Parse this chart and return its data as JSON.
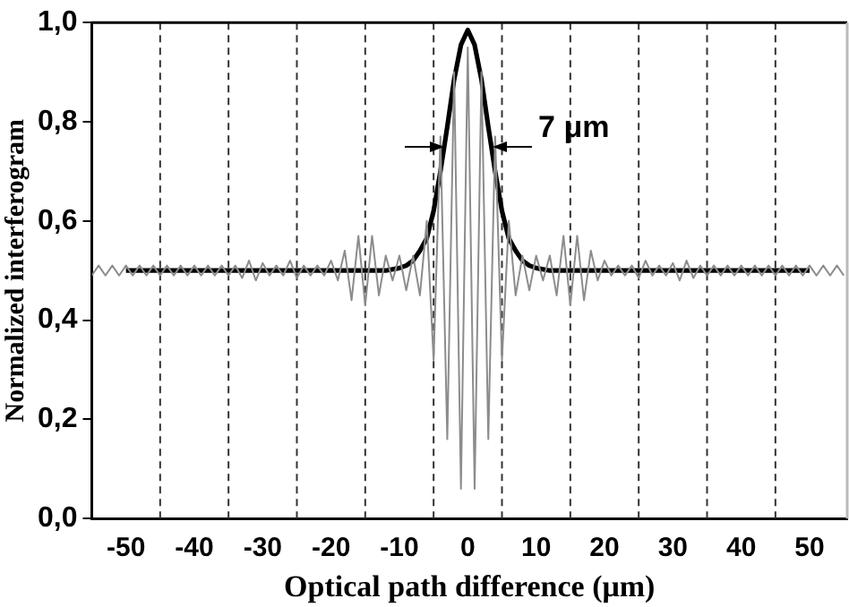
{
  "chart_data": {
    "type": "line",
    "xlabel": "Optical path difference (μm)",
    "ylabel": "Normalized interferogram",
    "xlim": [
      -55,
      55.5
    ],
    "ylim": [
      0,
      1
    ],
    "xticks": [
      -50,
      -40,
      -30,
      -20,
      -10,
      0,
      10,
      20,
      30,
      40,
      50
    ],
    "yticks": [
      {
        "value": 0,
        "label": "0,0"
      },
      {
        "value": 0.2,
        "label": "0,2"
      },
      {
        "value": 0.4,
        "label": "0,4"
      },
      {
        "value": 0.6,
        "label": "0,6"
      },
      {
        "value": 0.8,
        "label": "0,8"
      },
      {
        "value": 1,
        "label": "1,0"
      }
    ],
    "grid": false,
    "legend": false,
    "marker": "none",
    "ref_lines": [
      {
        "axis": "x",
        "value": -45,
        "line_style": "dashed"
      },
      {
        "axis": "x",
        "value": -35,
        "line_style": "dashed"
      },
      {
        "axis": "x",
        "value": -25,
        "line_style": "dashed"
      },
      {
        "axis": "x",
        "value": -15,
        "line_style": "dashed"
      },
      {
        "axis": "x",
        "value": -5,
        "line_style": "dashed"
      },
      {
        "axis": "x",
        "value": 5,
        "line_style": "dashed"
      },
      {
        "axis": "x",
        "value": 15,
        "line_style": "dashed"
      },
      {
        "axis": "x",
        "value": 25,
        "line_style": "dashed"
      },
      {
        "axis": "x",
        "value": 35,
        "line_style": "dashed"
      },
      {
        "axis": "x",
        "value": 45,
        "line_style": "dashed"
      }
    ],
    "annotations": [
      {
        "text": "7 μm",
        "x": 3.5,
        "y": 0.75
      }
    ],
    "series": [
      {
        "color": "#8c8c8c",
        "x": [
          -55,
          -54,
          -53,
          -52,
          -51,
          -50,
          -49,
          -48,
          -47,
          -46,
          -45,
          -44,
          -43,
          -42,
          -41,
          -40,
          -39,
          -38,
          -37,
          -36,
          -35,
          -34,
          -33,
          -32,
          -31,
          -30,
          -29,
          -28,
          -27,
          -26,
          -25,
          -24,
          -23,
          -22,
          -21,
          -20,
          -19,
          -18,
          -17,
          -16,
          -15,
          -14,
          -13,
          -12,
          -11,
          -10,
          -9,
          -8,
          -7,
          -6,
          -5,
          -4,
          -3,
          -2,
          -1,
          0,
          1,
          2,
          3,
          4,
          5,
          6,
          7,
          8,
          9,
          10,
          11,
          12,
          13,
          14,
          15,
          16,
          17,
          18,
          19,
          20,
          21,
          22,
          23,
          24,
          25,
          26,
          27,
          28,
          29,
          30,
          31,
          32,
          33,
          34,
          35,
          36,
          37,
          38,
          39,
          40,
          41,
          42,
          43,
          44,
          45,
          46,
          47,
          48,
          49,
          50,
          51,
          52,
          53,
          54,
          55
        ],
        "values": [
          0.49,
          0.51,
          0.49,
          0.51,
          0.49,
          0.51,
          0.49,
          0.51,
          0.49,
          0.51,
          0.49,
          0.51,
          0.49,
          0.51,
          0.49,
          0.51,
          0.49,
          0.51,
          0.49,
          0.51,
          0.49,
          0.51,
          0.485,
          0.52,
          0.48,
          0.515,
          0.49,
          0.51,
          0.49,
          0.52,
          0.485,
          0.51,
          0.49,
          0.51,
          0.49,
          0.52,
          0.48,
          0.54,
          0.44,
          0.57,
          0.43,
          0.57,
          0.45,
          0.53,
          0.48,
          0.53,
          0.46,
          0.53,
          0.45,
          0.6,
          0.32,
          0.77,
          0.16,
          0.9,
          0.06,
          0.95,
          0.06,
          0.9,
          0.16,
          0.77,
          0.32,
          0.6,
          0.45,
          0.53,
          0.46,
          0.53,
          0.48,
          0.53,
          0.45,
          0.57,
          0.43,
          0.57,
          0.44,
          0.54,
          0.48,
          0.52,
          0.49,
          0.51,
          0.49,
          0.51,
          0.485,
          0.52,
          0.49,
          0.51,
          0.49,
          0.515,
          0.48,
          0.52,
          0.485,
          0.51,
          0.49,
          0.51,
          0.49,
          0.51,
          0.49,
          0.51,
          0.49,
          0.51,
          0.49,
          0.51,
          0.49,
          0.51,
          0.49,
          0.51,
          0.49,
          0.51,
          0.49,
          0.51,
          0.49,
          0.51,
          0.49
        ]
      },
      {
        "color": "#000000",
        "x": [
          -50,
          -12,
          -10,
          -9,
          -8,
          -7,
          -6,
          -5,
          -4,
          -3,
          -2,
          -1,
          0,
          1,
          2,
          3,
          4,
          5,
          6,
          7,
          8,
          9,
          10,
          12,
          50
        ],
        "values": [
          0.5,
          0.5,
          0.505,
          0.51,
          0.52,
          0.54,
          0.565,
          0.62,
          0.7,
          0.79,
          0.885,
          0.955,
          0.985,
          0.955,
          0.885,
          0.79,
          0.7,
          0.62,
          0.565,
          0.54,
          0.52,
          0.51,
          0.505,
          0.5,
          0.5
        ]
      }
    ]
  }
}
